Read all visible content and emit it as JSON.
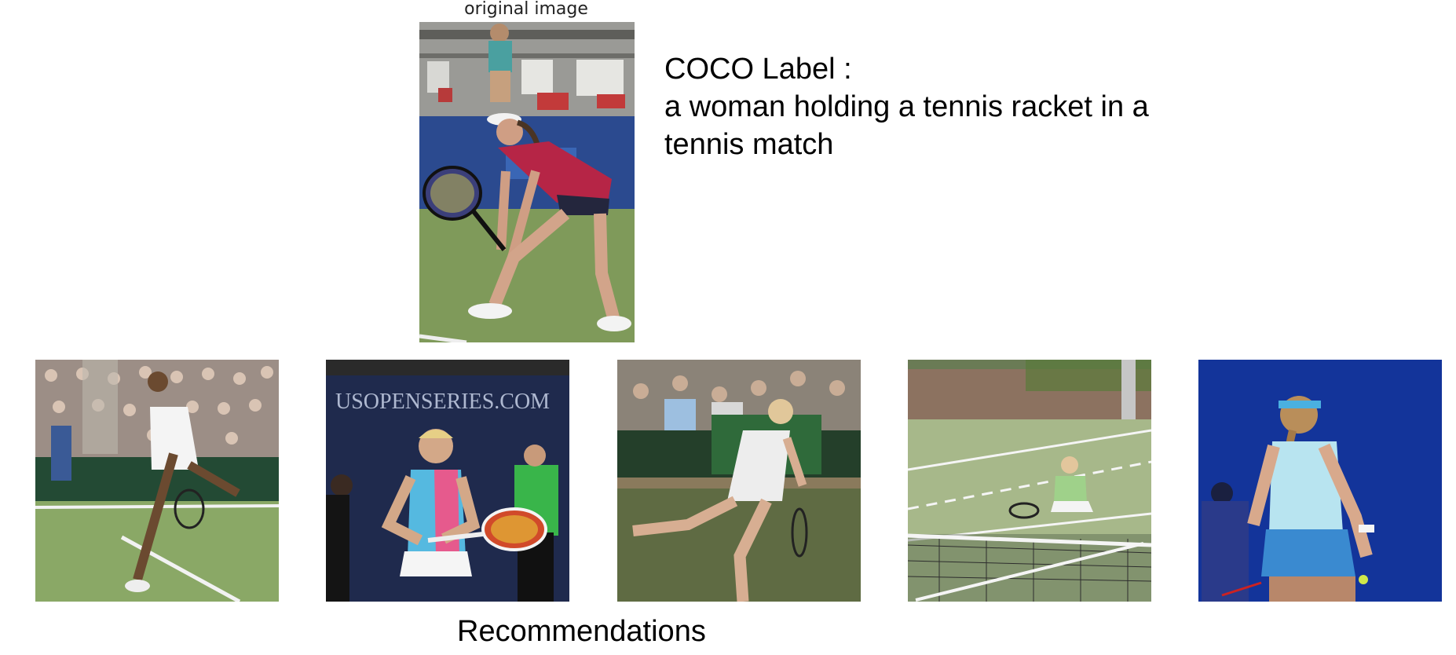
{
  "original": {
    "title": "original image",
    "photo": "woman-tennis-player-ready-stance-photo"
  },
  "coco_label": {
    "heading": "COCO Label :",
    "lines": [
      "a woman holding a tennis racket in a",
      "tennis match"
    ]
  },
  "recommendations": {
    "title": "Recommendations",
    "images": [
      {
        "photo": "tennis-player-white-dress-serve-grass-photo"
      },
      {
        "photo": "tennis-player-pink-blue-top-photo",
        "banner_text": "USOPENSERIES.COM"
      },
      {
        "photo": "tennis-player-white-dress-running-photo"
      },
      {
        "photo": "tennis-player-green-top-court-net-photo"
      },
      {
        "photo": "tennis-player-back-view-blue-skirt-photo"
      }
    ]
  },
  "colors": {
    "court_green": "#7f9a5a",
    "banner_blue": "#2b4a8f",
    "navy": "#1f2a4d"
  }
}
